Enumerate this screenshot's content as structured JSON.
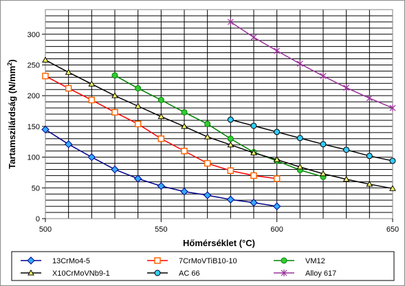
{
  "chart_data": {
    "type": "line",
    "xlabel": "Hőmérséklet (°C)",
    "ylabel": "Tartamszilárdság (N/mm",
    "ylabel_sup": "2",
    "ylabel_close": ")",
    "xlim": [
      500,
      650
    ],
    "ylim": [
      0,
      340
    ],
    "x_ticks": [
      500,
      550,
      600,
      650
    ],
    "y_ticks": [
      0,
      50,
      100,
      150,
      200,
      250,
      300
    ],
    "x_grid_step": 10,
    "y_grid_step": 10,
    "grid": true,
    "legend_position": "bottom",
    "series": [
      {
        "name": "13CrMo4-5",
        "color": "#00008b",
        "marker": "diamond",
        "marker_color": "#33aaff",
        "x": [
          500,
          510,
          520,
          530,
          540,
          550,
          560,
          570,
          580,
          590,
          600
        ],
        "y": [
          145,
          121,
          100,
          80,
          65,
          53,
          44,
          38,
          31,
          26,
          20
        ]
      },
      {
        "name": "7CrMoVTiB10-10",
        "color": "#ff0000",
        "marker": "square",
        "marker_color": "#ff6600",
        "x": [
          500,
          510,
          520,
          530,
          540,
          550,
          560,
          570,
          580,
          590,
          600
        ],
        "y": [
          232,
          212,
          193,
          173,
          154,
          130,
          110,
          90,
          78,
          70,
          65
        ]
      },
      {
        "name": "VM12",
        "color": "#008000",
        "marker": "circle",
        "marker_color": "#33cc33",
        "x": [
          530,
          540,
          550,
          560,
          570,
          580,
          590,
          600,
          610,
          620
        ],
        "y": [
          233,
          212,
          193,
          173,
          154,
          130,
          108,
          94,
          79,
          68
        ]
      },
      {
        "name": "X10CrMoVNb9-1",
        "color": "#000000",
        "marker": "triangle",
        "marker_color": "#ffff66",
        "x": [
          500,
          510,
          520,
          530,
          540,
          550,
          560,
          570,
          580,
          590,
          600,
          610,
          620,
          630,
          640,
          650
        ],
        "y": [
          258,
          238,
          219,
          200,
          183,
          166,
          150,
          133,
          120,
          107,
          96,
          84,
          73,
          64,
          56,
          49
        ]
      },
      {
        "name": "AC 66",
        "color": "#000000",
        "marker": "circle",
        "marker_color": "#33ccff",
        "x": [
          580,
          590,
          600,
          610,
          620,
          630,
          640,
          650
        ],
        "y": [
          161,
          151,
          141,
          131,
          121,
          112,
          102,
          94
        ]
      },
      {
        "name": "Alloy 617",
        "color": "#993399",
        "marker": "star",
        "marker_color": "#993399",
        "x": [
          580,
          590,
          600,
          610,
          620,
          630,
          640,
          650
        ],
        "y": [
          320,
          295,
          273,
          252,
          232,
          213,
          196,
          180
        ]
      }
    ]
  }
}
